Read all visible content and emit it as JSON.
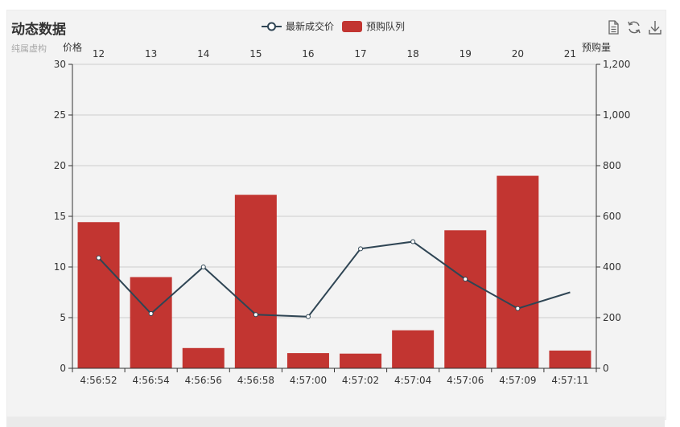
{
  "title": "动态数据",
  "subtitle": "纯属虚构",
  "legend": {
    "line_label": "最新成交价",
    "bar_label": "预购队列"
  },
  "colors": {
    "bar": "#c23531",
    "line": "#2f4554"
  },
  "toolbox": [
    "data-view-icon",
    "refresh-icon",
    "download-icon"
  ],
  "chart_data": {
    "type": "bar",
    "title": "动态数据",
    "subtitle": "纯属虚构",
    "categories": [
      "4:56:52",
      "4:56:54",
      "4:56:56",
      "4:56:58",
      "4:57:00",
      "4:57:02",
      "4:57:04",
      "4:57:06",
      "4:57:09",
      "4:57:11"
    ],
    "top_categories": [
      "12",
      "13",
      "14",
      "15",
      "16",
      "17",
      "18",
      "19",
      "20",
      "21"
    ],
    "left_axis": {
      "name": "价格",
      "min": 0,
      "max": 30,
      "ticks": [
        "0",
        "5",
        "10",
        "15",
        "20",
        "25",
        "30"
      ]
    },
    "right_axis": {
      "name": "预购量",
      "min": 0,
      "max": 1200,
      "ticks": [
        "0",
        "200",
        "400",
        "600",
        "800",
        "1,000",
        "1,200"
      ]
    },
    "series": [
      {
        "name": "预购队列",
        "type": "bar",
        "axis": "right",
        "values": [
          577,
          360,
          80,
          685,
          60,
          58,
          150,
          545,
          760,
          70
        ]
      },
      {
        "name": "最新成交价",
        "type": "line",
        "axis": "left",
        "values": [
          10.9,
          5.4,
          10.0,
          5.3,
          5.1,
          11.8,
          12.5,
          8.8,
          5.9,
          7.5
        ]
      }
    ],
    "grid": true,
    "legend_position": "top"
  }
}
